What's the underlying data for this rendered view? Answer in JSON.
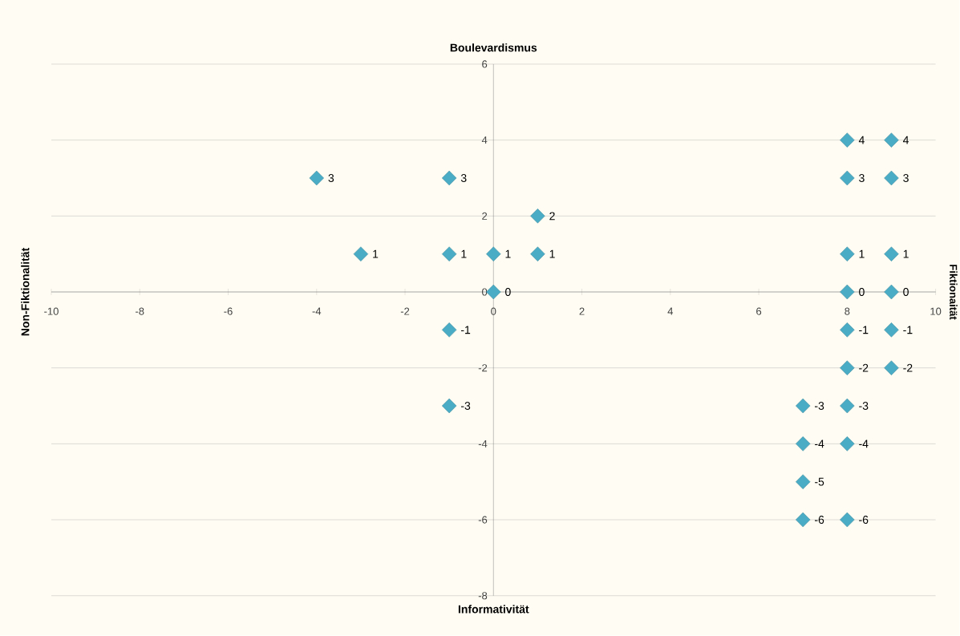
{
  "chart_data": {
    "type": "scatter",
    "xlabel": "Informativität",
    "annotations": [
      "Boulevardismus",
      "Non-Fiktionalität",
      "Fiktionaität"
    ],
    "x": [
      -4,
      -1,
      1,
      -3,
      -1,
      0,
      1,
      0,
      -1,
      -1,
      8,
      9,
      8,
      9,
      8,
      9,
      8,
      9,
      8,
      9,
      8,
      9,
      7,
      8,
      7,
      8,
      7,
      7,
      8
    ],
    "values": [
      3,
      3,
      2,
      1,
      1,
      1,
      1,
      0,
      -1,
      -3,
      4,
      4,
      3,
      3,
      1,
      1,
      0,
      0,
      -1,
      -1,
      -2,
      -2,
      -3,
      -3,
      -4,
      -4,
      -5,
      -6,
      -6
    ],
    "color": "#4bacc6",
    "marker": "diamond",
    "data_labels": true,
    "xlim": [
      -10,
      10
    ],
    "ylim": [
      -8,
      6
    ],
    "xticks": [
      -10,
      -8,
      -6,
      -4,
      -2,
      0,
      2,
      4,
      6,
      8,
      10
    ],
    "yticks": [
      -8,
      -6,
      -4,
      -2,
      0,
      2,
      4,
      6
    ],
    "grid": "y"
  }
}
